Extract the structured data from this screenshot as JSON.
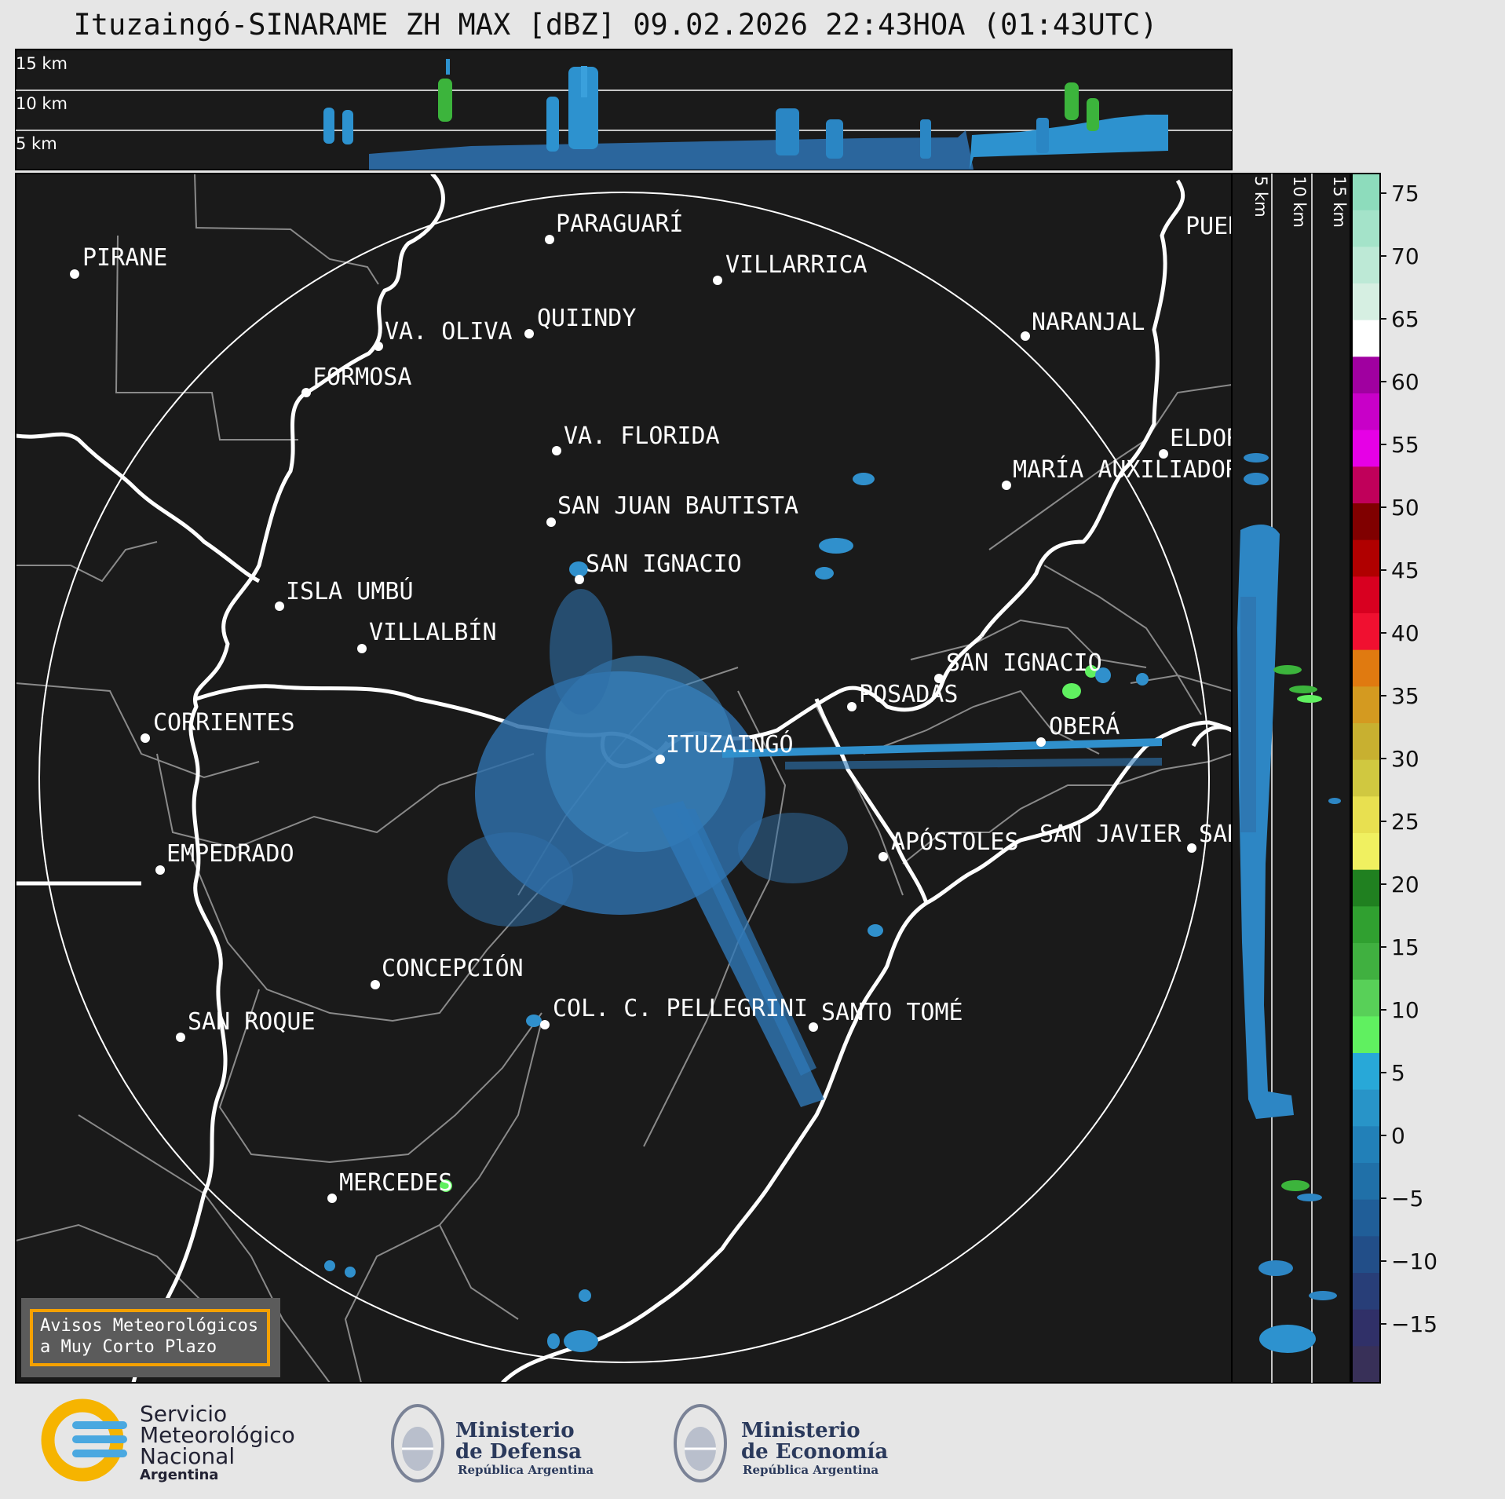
{
  "title": "Ituzaingó-SINARAME ZH MAX [dBZ] 09.02.2026 22:43HOA (01:43UTC)",
  "top_altitudes": [
    "15 km",
    "10 km",
    "5 km"
  ],
  "side_altitudes": [
    "5 km",
    "10 km",
    "15 km"
  ],
  "colorbar": {
    "ticks": [
      "75",
      "70",
      "65",
      "60",
      "55",
      "50",
      "45",
      "40",
      "35",
      "30",
      "25",
      "20",
      "15",
      "10",
      "5",
      "0",
      "−5",
      "−10",
      "−15"
    ],
    "colors": [
      "#8ddcbc",
      "#a4e3c9",
      "#bde9d6",
      "#d6efe2",
      "#ffffff",
      "#a000a0",
      "#c800c8",
      "#e600e6",
      "#c0005a",
      "#800000",
      "#b00000",
      "#d80020",
      "#f01030",
      "#e07a10",
      "#d49a20",
      "#c8b030",
      "#d0c840",
      "#e8e050",
      "#f0f060",
      "#208020",
      "#30a030",
      "#40b040",
      "#58d058",
      "#60f060",
      "#28a8d8",
      "#2894c8",
      "#2280b8",
      "#2070a8",
      "#205e98",
      "#224e88",
      "#283e78",
      "#303068",
      "#383058"
    ]
  },
  "cities": [
    {
      "name": "PIRANE"
    },
    {
      "name": "PARAGUARÍ"
    },
    {
      "name": "VILLARRICA"
    },
    {
      "name": "QUIINDY"
    },
    {
      "name": "VA. OLIVA"
    },
    {
      "name": "NARANJAL"
    },
    {
      "name": "FORMOSA"
    },
    {
      "name": "VA. FLORIDA"
    },
    {
      "name": "ELDOR"
    },
    {
      "name": "MARÍA AUXILIADOR"
    },
    {
      "name": "SAN JUAN BAUTISTA"
    },
    {
      "name": "SAN IGNACIO"
    },
    {
      "name": "ISLA UMBÚ"
    },
    {
      "name": "VILLALBÍN"
    },
    {
      "name": "SAN IGNACIO"
    },
    {
      "name": "POSADAS"
    },
    {
      "name": "CORRIENTES"
    },
    {
      "name": "ITUZAINGÓ"
    },
    {
      "name": "OBERÁ"
    },
    {
      "name": "EMPEDRADO"
    },
    {
      "name": "APÓSTOLES"
    },
    {
      "name": "SAN JAVIER"
    },
    {
      "name": "SAN"
    },
    {
      "name": "CONCEPCIÓN"
    },
    {
      "name": "COL. C. PELLEGRINI"
    },
    {
      "name": "SANTO TOMÉ"
    },
    {
      "name": "SAN ROQUE"
    },
    {
      "name": "MERCEDES"
    },
    {
      "name": "PUER"
    }
  ],
  "warning": {
    "line1": "Avisos Meteorológicos",
    "line2": "a Muy Corto Plazo"
  },
  "logos": {
    "smn": {
      "line1": "Servicio",
      "line2": "Meteorológico",
      "line3": "Nacional",
      "line4": "Argentina"
    },
    "defensa": {
      "line1": "Ministerio",
      "line2": "de Defensa",
      "line3": "República Argentina"
    },
    "economia": {
      "line1": "Ministerio",
      "line2": "de Economía",
      "line3": "República Argentina"
    }
  }
}
